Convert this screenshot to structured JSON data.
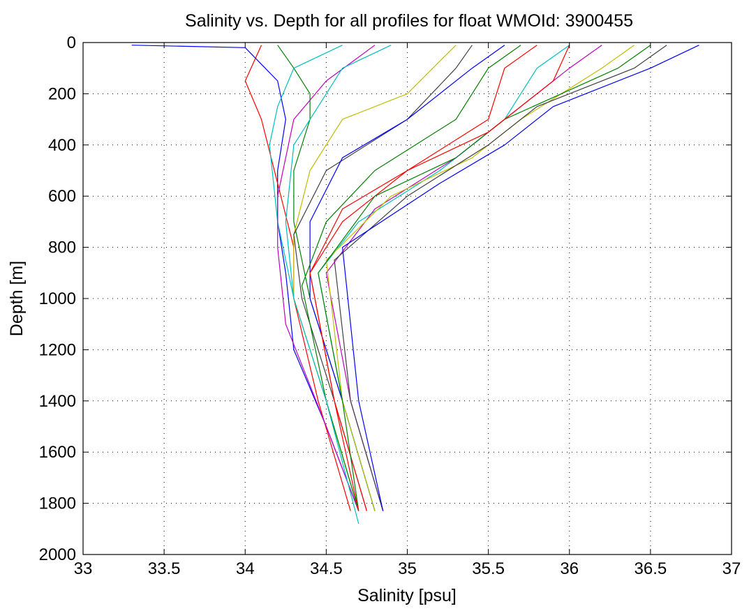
{
  "chart_data": {
    "type": "line",
    "title": "Salinity vs. Depth for all profiles for float WMOId: 3900455",
    "xlabel": "Salinity [psu]",
    "ylabel": "Depth [m]",
    "xlim": [
      33,
      37
    ],
    "ylim": [
      0,
      2000
    ],
    "y_reversed": true,
    "grid": true,
    "x_ticks": [
      "33",
      "33.5",
      "34",
      "34.5",
      "35",
      "35.5",
      "36",
      "36.5",
      "37"
    ],
    "y_ticks": [
      "0",
      "200",
      "400",
      "600",
      "800",
      "1000",
      "1200",
      "1400",
      "1600",
      "1800",
      "2000"
    ],
    "series_colors": [
      "#0000ff",
      "#008000",
      "#ff0000",
      "#00bfbf",
      "#bf00bf",
      "#bfbf00",
      "#404040"
    ],
    "series": [
      {
        "x": [
          33.3,
          34.0,
          34.2,
          34.25,
          34.2,
          34.2,
          34.25,
          34.3,
          34.5,
          34.7
        ],
        "y": [
          10,
          20,
          150,
          300,
          500,
          700,
          900,
          1200,
          1500,
          1830
        ]
      },
      {
        "x": [
          34.2,
          34.3,
          34.4,
          34.4,
          34.3,
          34.3,
          34.4,
          34.6,
          34.8
        ],
        "y": [
          10,
          100,
          200,
          300,
          500,
          700,
          1000,
          1400,
          1830
        ]
      },
      {
        "x": [
          34.1,
          34.0,
          34.1,
          34.2,
          34.3,
          34.3,
          34.45,
          34.65
        ],
        "y": [
          10,
          150,
          300,
          550,
          800,
          1000,
          1400,
          1830
        ]
      },
      {
        "x": [
          34.6,
          34.3,
          34.2,
          34.15,
          34.2,
          34.3,
          34.5,
          34.7
        ],
        "y": [
          10,
          100,
          250,
          400,
          700,
          1000,
          1400,
          1830
        ]
      },
      {
        "x": [
          34.8,
          34.5,
          34.3,
          34.2,
          34.2,
          34.25,
          34.5,
          34.7
        ],
        "y": [
          10,
          150,
          300,
          600,
          800,
          1100,
          1500,
          1830
        ]
      },
      {
        "x": [
          35.3,
          35.0,
          34.6,
          34.4,
          34.3,
          34.3,
          34.5,
          34.7
        ],
        "y": [
          10,
          200,
          300,
          500,
          750,
          1000,
          1400,
          1830
        ]
      },
      {
        "x": [
          35.4,
          35.3,
          35.0,
          34.5,
          34.3,
          34.35,
          34.55,
          34.75
        ],
        "y": [
          10,
          100,
          300,
          500,
          750,
          1000,
          1400,
          1830
        ]
      },
      {
        "x": [
          35.6,
          35.4,
          35.0,
          34.6,
          34.4,
          34.4,
          34.6,
          34.8
        ],
        "y": [
          10,
          100,
          300,
          450,
          700,
          1000,
          1400,
          1830
        ]
      },
      {
        "x": [
          35.7,
          35.5,
          35.3,
          34.8,
          34.5,
          34.35,
          34.5,
          34.7
        ],
        "y": [
          10,
          100,
          300,
          500,
          700,
          950,
          1400,
          1830
        ]
      },
      {
        "x": [
          35.8,
          35.6,
          35.5,
          35.0,
          34.6,
          34.4,
          34.55,
          34.75
        ],
        "y": [
          10,
          100,
          300,
          500,
          700,
          900,
          1400,
          1830
        ]
      },
      {
        "x": [
          36.0,
          35.8,
          35.6,
          35.2,
          34.7,
          34.45,
          34.6,
          34.8
        ],
        "y": [
          10,
          100,
          300,
          500,
          700,
          900,
          1400,
          1830
        ]
      },
      {
        "x": [
          36.2,
          36.0,
          35.6,
          35.3,
          34.8,
          34.5,
          34.65,
          34.85
        ],
        "y": [
          10,
          100,
          300,
          450,
          650,
          900,
          1400,
          1830
        ]
      },
      {
        "x": [
          36.4,
          36.2,
          35.7,
          35.4,
          34.9,
          34.5,
          34.6,
          34.8
        ],
        "y": [
          10,
          100,
          300,
          450,
          600,
          850,
          1400,
          1830
        ]
      },
      {
        "x": [
          36.6,
          36.4,
          35.8,
          35.5,
          35.0,
          34.55,
          34.65,
          34.85
        ],
        "y": [
          10,
          100,
          250,
          400,
          600,
          850,
          1400,
          1830
        ]
      },
      {
        "x": [
          36.8,
          36.5,
          35.9,
          35.6,
          35.2,
          34.6,
          34.7,
          34.85
        ],
        "y": [
          10,
          100,
          250,
          400,
          550,
          800,
          1400,
          1830
        ]
      },
      {
        "x": [
          36.5,
          36.3,
          35.6,
          35.3,
          34.8,
          34.45,
          34.6,
          34.7
        ],
        "y": [
          10,
          100,
          300,
          450,
          600,
          900,
          1400,
          1830
        ]
      },
      {
        "x": [
          36.0,
          35.9,
          35.5,
          35.0,
          34.6,
          34.4,
          34.55,
          34.7
        ],
        "y": [
          10,
          150,
          350,
          500,
          650,
          900,
          1400,
          1830
        ]
      },
      {
        "x": [
          34.9,
          34.6,
          34.5,
          34.3,
          34.25,
          34.3,
          34.5,
          34.7
        ],
        "y": [
          10,
          100,
          200,
          400,
          700,
          1000,
          1400,
          1880
        ]
      }
    ]
  }
}
